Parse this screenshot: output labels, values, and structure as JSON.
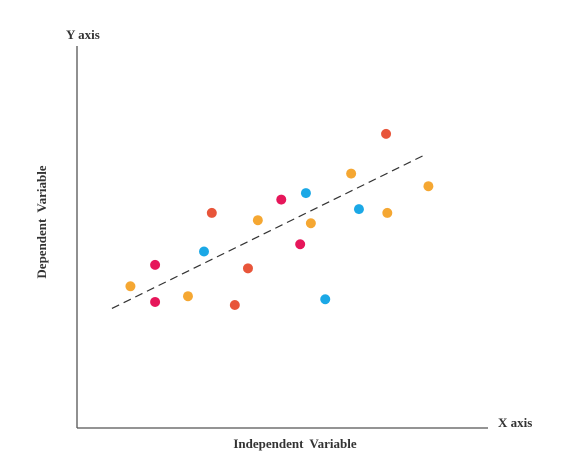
{
  "chart_data": {
    "type": "scatter",
    "title": "",
    "y_axis_title": "Y axis",
    "x_axis_title": "X axis",
    "xlabel": "Independent Variable",
    "ylabel": "Dependent Variable",
    "xlim": [
      0,
      100
    ],
    "ylim": [
      0,
      100
    ],
    "grid": false,
    "legend": "none",
    "colors": {
      "red": "#E8553A",
      "orange": "#F5A732",
      "blue": "#1BA8E6",
      "pink": "#E6165A"
    },
    "points": [
      {
        "x": 13.0,
        "y": 37.1,
        "color": "orange"
      },
      {
        "x": 19.0,
        "y": 42.7,
        "color": "pink"
      },
      {
        "x": 19.0,
        "y": 33.0,
        "color": "pink"
      },
      {
        "x": 27.0,
        "y": 34.5,
        "color": "orange"
      },
      {
        "x": 30.9,
        "y": 46.2,
        "color": "blue"
      },
      {
        "x": 32.8,
        "y": 56.3,
        "color": "red"
      },
      {
        "x": 38.4,
        "y": 32.2,
        "color": "red"
      },
      {
        "x": 41.6,
        "y": 41.8,
        "color": "red"
      },
      {
        "x": 44.0,
        "y": 54.4,
        "color": "orange"
      },
      {
        "x": 49.7,
        "y": 59.8,
        "color": "pink"
      },
      {
        "x": 54.3,
        "y": 48.1,
        "color": "pink"
      },
      {
        "x": 55.7,
        "y": 61.5,
        "color": "blue"
      },
      {
        "x": 56.9,
        "y": 53.6,
        "color": "orange"
      },
      {
        "x": 60.4,
        "y": 33.7,
        "color": "blue"
      },
      {
        "x": 66.7,
        "y": 66.6,
        "color": "orange"
      },
      {
        "x": 68.6,
        "y": 57.3,
        "color": "blue"
      },
      {
        "x": 75.2,
        "y": 77.0,
        "color": "red"
      },
      {
        "x": 75.5,
        "y": 56.3,
        "color": "orange"
      },
      {
        "x": 85.5,
        "y": 63.3,
        "color": "orange"
      }
    ],
    "trendline": {
      "x": [
        8.5,
        85.0
      ],
      "y": [
        31.3,
        71.7
      ],
      "style": "dashed"
    }
  }
}
